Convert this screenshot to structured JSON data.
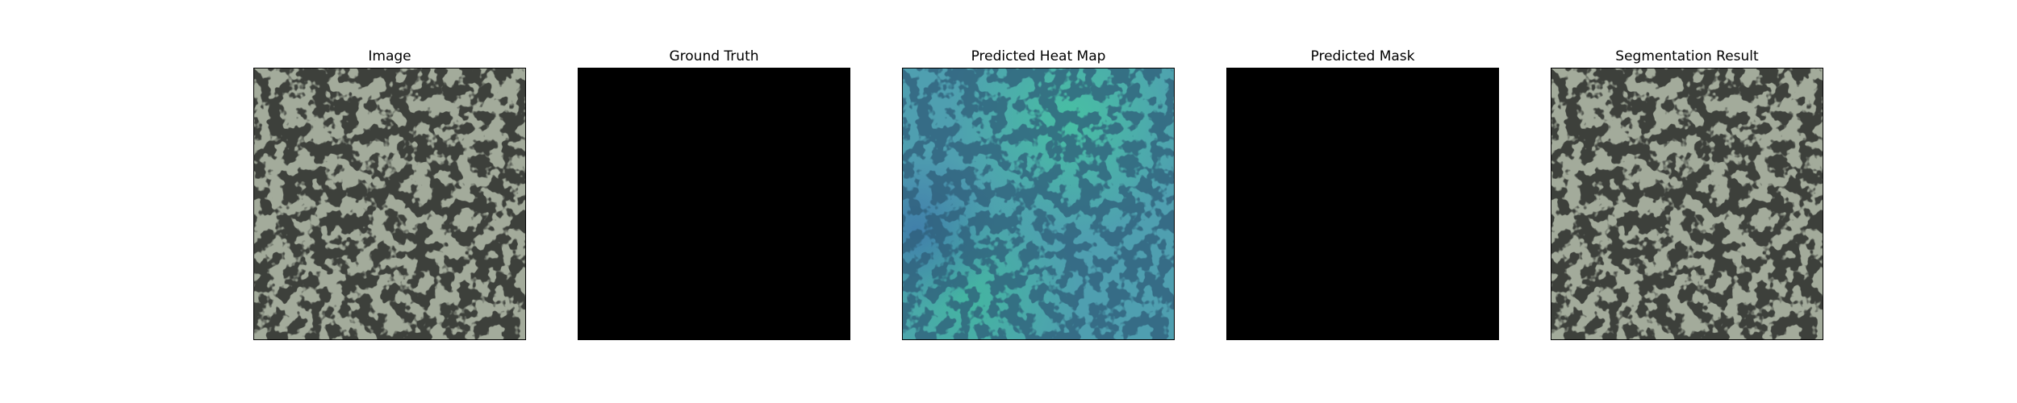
{
  "figure": {
    "panels": [
      {
        "title": "Image",
        "content": "texture"
      },
      {
        "title": "Ground Truth",
        "content": "black"
      },
      {
        "title": "Predicted Heat Map",
        "content": "heatmap"
      },
      {
        "title": "Predicted Mask",
        "content": "black"
      },
      {
        "title": "Segmentation Result",
        "content": "texture"
      }
    ]
  },
  "colors": {
    "texture_light": "#a3ab9b",
    "texture_dark": "#3c3f3a",
    "heatmap_base": "#4f9fb0",
    "heatmap_dark": "#2d5c78",
    "heatmap_green": "#3fbf9a",
    "mask_background": "#000000"
  }
}
